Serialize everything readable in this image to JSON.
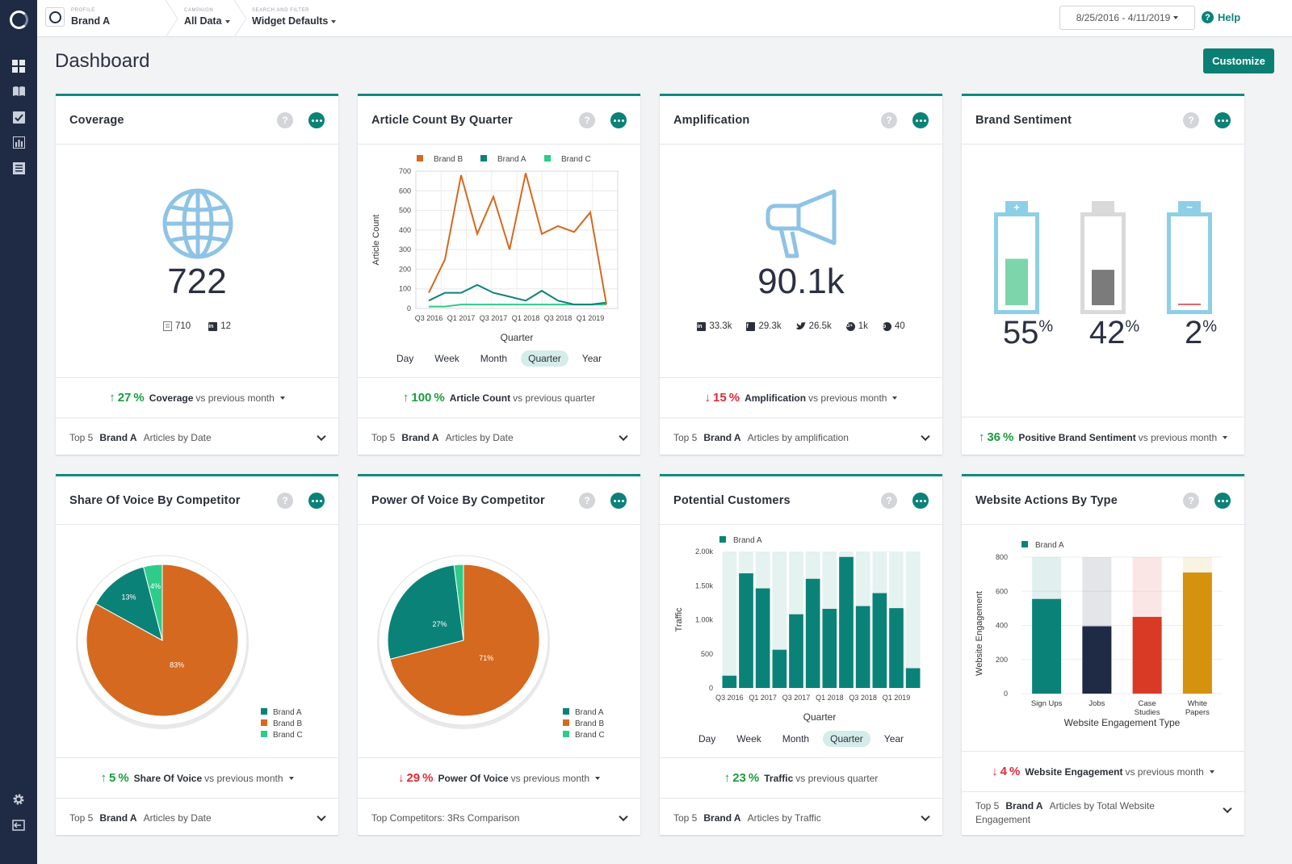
{
  "topbar": {
    "profile_caption": "PROFILE",
    "profile_value": "Brand A",
    "campaign_caption": "CAMPAIGN",
    "campaign_value": "All Data",
    "filter_caption": "SEARCH AND FILTER",
    "filter_value": "Widget Defaults",
    "date_range": "8/25/2016 - 4/11/2019",
    "help_label": "Help"
  },
  "page": {
    "title": "Dashboard",
    "customize_label": "Customize"
  },
  "colors": {
    "teal": "#0b7f74",
    "orange": "#d4691f",
    "green": "#2ecc8a",
    "up": "#1a9c3c",
    "down": "#e02b35"
  },
  "cards": {
    "coverage": {
      "title": "Coverage",
      "value": "722",
      "articles": "710",
      "linkedin": "12",
      "delta_value": "27",
      "delta_label": "Coverage",
      "delta_rest": "vs previous month",
      "foot_top": "Top 5",
      "foot_brand": "Brand A",
      "foot_rest": "Articles by Date"
    },
    "article_count": {
      "title": "Article Count By Quarter",
      "tabs": [
        "Day",
        "Week",
        "Month",
        "Quarter",
        "Year"
      ],
      "delta_value": "100",
      "delta_label": "Article Count",
      "delta_rest": "vs previous quarter",
      "foot_top": "Top 5",
      "foot_brand": "Brand A",
      "foot_rest": "Articles by Date"
    },
    "amplification": {
      "title": "Amplification",
      "value": "90.1k",
      "linkedin": "33.3k",
      "facebook": "29.3k",
      "twitter": "26.5k",
      "googleplus": "1k",
      "pinterest": "40",
      "delta_value": "15",
      "delta_label": "Amplification",
      "delta_rest": "vs previous month",
      "foot_top": "Top 5",
      "foot_brand": "Brand A",
      "foot_rest": "Articles by amplification"
    },
    "sentiment": {
      "title": "Brand Sentiment",
      "positive": 55,
      "neutral": 42,
      "negative": 2,
      "positive_label": "55",
      "neutral_label": "42",
      "negative_label": "2",
      "delta_value": "36",
      "delta_label": "Positive Brand Sentiment",
      "delta_rest": "vs previous month"
    },
    "share_of_voice": {
      "title": "Share Of Voice By Competitor",
      "delta_value": "5",
      "delta_label": "Share Of Voice",
      "delta_rest": "vs previous month",
      "foot_top": "Top 5",
      "foot_brand": "Brand A",
      "foot_rest": "Articles by Date"
    },
    "power_of_voice": {
      "title": "Power Of Voice By Competitor",
      "delta_value": "29",
      "delta_label": "Power Of Voice",
      "delta_rest": "vs previous month",
      "foot_text": "Top Competitors: 3Rs Comparison"
    },
    "potential_customers": {
      "title": "Potential Customers",
      "tabs": [
        "Day",
        "Week",
        "Month",
        "Quarter",
        "Year"
      ],
      "delta_value": "23",
      "delta_label": "Traffic",
      "delta_rest": "vs previous quarter",
      "foot_top": "Top 5",
      "foot_brand": "Brand A",
      "foot_rest": "Articles by Traffic"
    },
    "website_actions": {
      "title": "Website Actions By Type",
      "delta_value": "4",
      "delta_label": "Website Engagement",
      "delta_rest": "vs previous month",
      "foot_top": "Top 5",
      "foot_brand": "Brand A",
      "foot_rest": "Articles by Total Website Engagement"
    }
  },
  "chart_data": [
    {
      "type": "line",
      "xlabel": "Quarter",
      "ylabel": "Article Count",
      "ylim": [
        0,
        700
      ],
      "yticks": [
        0,
        100,
        200,
        300,
        400,
        500,
        600,
        700
      ],
      "xticks": [
        "Q3 2016",
        "Q1 2017",
        "Q3 2017",
        "Q1 2018",
        "Q3 2018",
        "Q1 2019"
      ],
      "x": [
        "Q3 2016",
        "Q4 2016",
        "Q1 2017",
        "Q2 2017",
        "Q3 2017",
        "Q4 2017",
        "Q1 2018",
        "Q2 2018",
        "Q3 2018",
        "Q4 2018",
        "Q1 2019",
        "Q2 2019"
      ],
      "series": [
        {
          "name": "Brand B",
          "color": "#d4691f",
          "values": [
            80,
            250,
            680,
            380,
            570,
            300,
            690,
            380,
            420,
            390,
            490,
            20
          ]
        },
        {
          "name": "Brand A",
          "color": "#0b8278",
          "values": [
            40,
            80,
            80,
            120,
            80,
            60,
            40,
            90,
            40,
            20,
            20,
            30
          ]
        },
        {
          "name": "Brand C",
          "color": "#2ecc8a",
          "values": [
            10,
            10,
            20,
            20,
            20,
            20,
            20,
            20,
            20,
            20,
            20,
            20
          ]
        }
      ],
      "grid": true,
      "legend": "top"
    },
    {
      "type": "pie",
      "title": "Share Of Voice By Competitor",
      "labels": [
        "Brand A",
        "Brand B",
        "Brand C"
      ],
      "values": [
        13,
        83,
        4
      ],
      "colors": [
        "#0b8278",
        "#d4691f",
        "#2ecc8a"
      ],
      "slice_labels": [
        "13%",
        "83%",
        "4%"
      ],
      "legend": "bottom-right"
    },
    {
      "type": "pie",
      "title": "Power Of Voice By Competitor",
      "labels": [
        "Brand A",
        "Brand B",
        "Brand C"
      ],
      "values": [
        27,
        71,
        2
      ],
      "colors": [
        "#0b8278",
        "#d4691f",
        "#2ecc8a"
      ],
      "slice_labels": [
        "27%",
        "71%",
        ""
      ],
      "legend": "bottom-right"
    },
    {
      "type": "bar",
      "xlabel": "Quarter",
      "ylabel": "Traffic",
      "ylim": [
        0,
        2000
      ],
      "yticks": [
        "0",
        "500",
        "1.00k",
        "1.50k",
        "2.00k"
      ],
      "xticks": [
        "Q3 2016",
        "Q1 2017",
        "Q3 2017",
        "Q1 2018",
        "Q3 2018",
        "Q1 2019"
      ],
      "categories": [
        "Q3 2016",
        "Q4 2016",
        "Q1 2017",
        "Q2 2017",
        "Q3 2017",
        "Q4 2017",
        "Q1 2018",
        "Q2 2018",
        "Q3 2018",
        "Q4 2018",
        "Q1 2019",
        "Q2 2019"
      ],
      "series": [
        {
          "name": "Brand A",
          "color": "#0b8278",
          "values": [
            180,
            1680,
            1460,
            560,
            1080,
            1600,
            1160,
            1920,
            1200,
            1390,
            1170,
            290
          ]
        }
      ],
      "background_max": 2000,
      "legend": "top-left"
    },
    {
      "type": "bar",
      "xlabel": "Website Engagement Type",
      "ylabel": "Website Engagement",
      "ylim": [
        0,
        800
      ],
      "yticks": [
        0,
        200,
        400,
        600,
        800
      ],
      "categories": [
        "Sign Ups",
        "Jobs",
        "Case Studies",
        "White Papers"
      ],
      "series": [
        {
          "name": "Brand A",
          "values": [
            555,
            395,
            450,
            710
          ],
          "colors": [
            "#0b8278",
            "#1f2b45",
            "#d83a26",
            "#d4920e"
          ]
        }
      ],
      "totals": [
        800,
        800,
        800,
        800
      ],
      "legend": "top-left"
    }
  ]
}
